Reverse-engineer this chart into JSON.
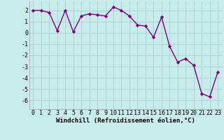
{
  "x": [
    0,
    1,
    2,
    3,
    4,
    5,
    6,
    7,
    8,
    9,
    10,
    11,
    12,
    13,
    14,
    15,
    16,
    17,
    18,
    19,
    20,
    21,
    22,
    23
  ],
  "y": [
    2.0,
    2.0,
    1.8,
    0.2,
    2.0,
    0.1,
    1.5,
    1.7,
    1.6,
    1.5,
    2.3,
    2.0,
    1.5,
    0.7,
    0.6,
    -0.4,
    1.4,
    -1.2,
    -2.6,
    -2.3,
    -2.9,
    -5.4,
    -5.7,
    -3.5
  ],
  "line_color": "#800080",
  "marker": "D",
  "marker_size": 2.2,
  "line_width": 1.0,
  "bg_color": "#c8ecec",
  "grid_color": "#a8d4d4",
  "xlabel": "Windchill (Refroidissement éolien,°C)",
  "xlabel_fontsize": 6.5,
  "tick_fontsize": 6.0,
  "ylim": [
    -6.8,
    2.8
  ],
  "xlim": [
    -0.5,
    23.5
  ],
  "yticks": [
    -6,
    -5,
    -4,
    -3,
    -2,
    -1,
    0,
    1,
    2
  ],
  "xticks": [
    0,
    1,
    2,
    3,
    4,
    5,
    6,
    7,
    8,
    9,
    10,
    11,
    12,
    13,
    14,
    15,
    16,
    17,
    18,
    19,
    20,
    21,
    22,
    23
  ]
}
